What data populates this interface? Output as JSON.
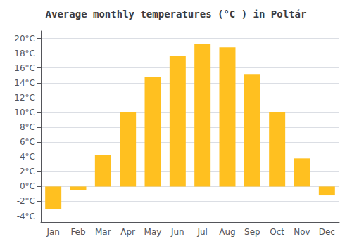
{
  "chart_data": {
    "type": "bar",
    "title": "Average monthly temperatures (°C ) in Poltár",
    "categories": [
      "Jan",
      "Feb",
      "Mar",
      "Apr",
      "May",
      "Jun",
      "Jul",
      "Aug",
      "Sep",
      "Oct",
      "Nov",
      "Dec"
    ],
    "values": [
      -3.0,
      -0.5,
      4.3,
      10.0,
      14.8,
      17.6,
      19.3,
      18.8,
      15.2,
      10.1,
      3.8,
      -1.2
    ],
    "color": "#FFC020",
    "ylim": [
      -4.8,
      21.0
    ],
    "yticks": [
      {
        "value": -4,
        "label": "-4°C"
      },
      {
        "value": -2,
        "label": "-2°C"
      },
      {
        "value": 0,
        "label": "0°C"
      },
      {
        "value": 2,
        "label": "2°C"
      },
      {
        "value": 4,
        "label": "4°C"
      },
      {
        "value": 6,
        "label": "6°C"
      },
      {
        "value": 8,
        "label": "8°C"
      },
      {
        "value": 10,
        "label": "10°C"
      },
      {
        "value": 12,
        "label": "12°C"
      },
      {
        "value": 14,
        "label": "14°C"
      },
      {
        "value": 16,
        "label": "16°C"
      },
      {
        "value": 18,
        "label": "18°C"
      },
      {
        "value": 20,
        "label": "20°C"
      }
    ],
    "grid": true
  }
}
